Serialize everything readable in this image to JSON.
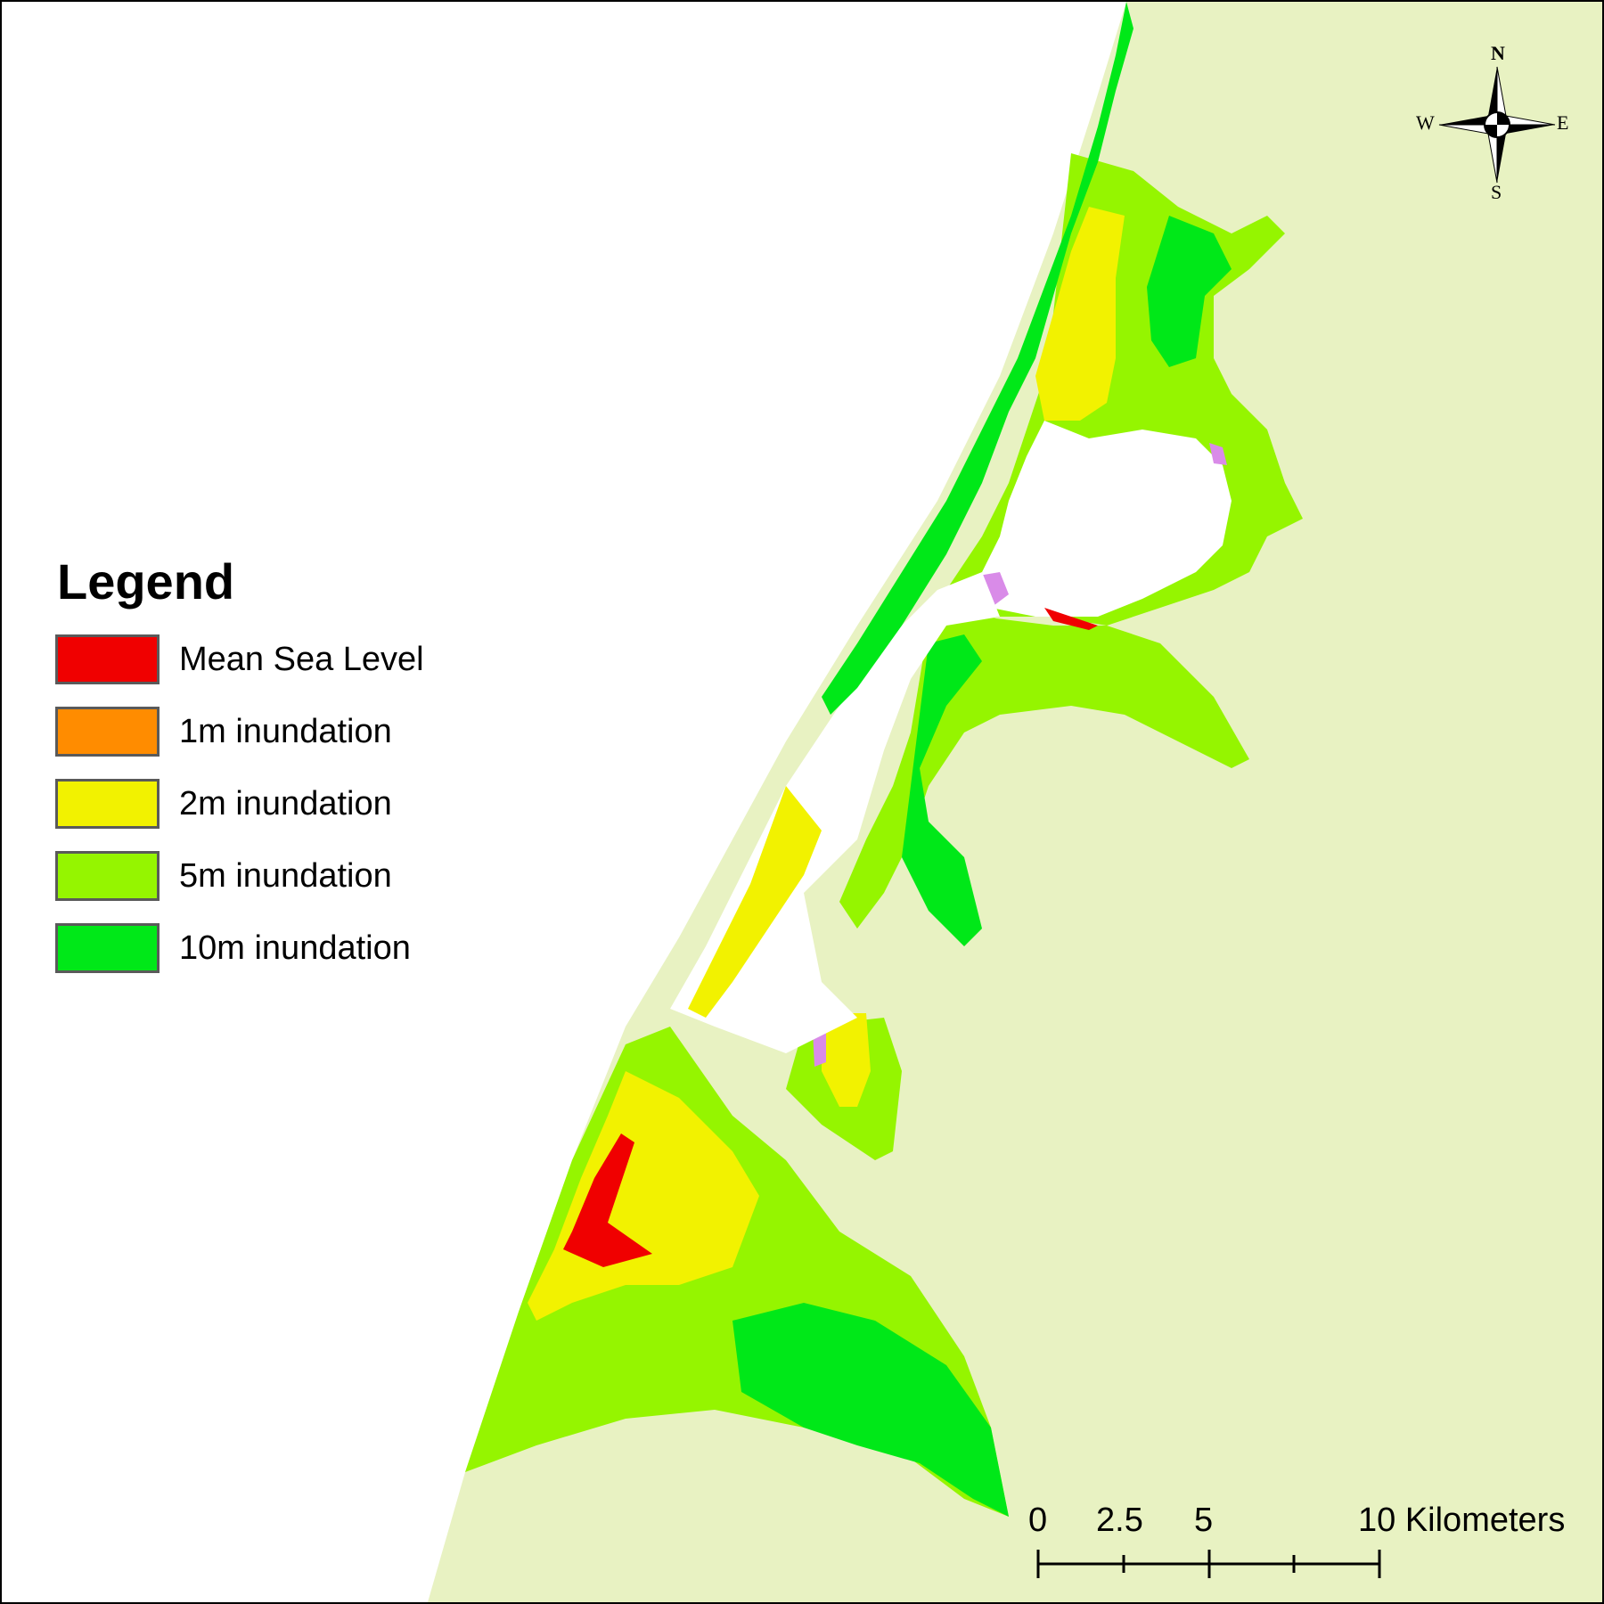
{
  "legend": {
    "title": "Legend",
    "items": [
      {
        "label": "Mean Sea Level",
        "color": "#f00000"
      },
      {
        "label": "1m inundation",
        "color": "#ff8c00"
      },
      {
        "label": "2m inundation",
        "color": "#f2f200"
      },
      {
        "label": "5m inundation",
        "color": "#95f500"
      },
      {
        "label": "10m inundation",
        "color": "#00e818"
      }
    ]
  },
  "map": {
    "land_color": "#e8f2c2",
    "water_color": "#ffffff",
    "wetland_color": "#d98be8"
  },
  "compass": {
    "n": "N",
    "s": "S",
    "e": "E",
    "w": "W"
  },
  "scale": {
    "ticks": [
      "0",
      "2.5",
      "5",
      "10 Kilometers"
    ]
  }
}
